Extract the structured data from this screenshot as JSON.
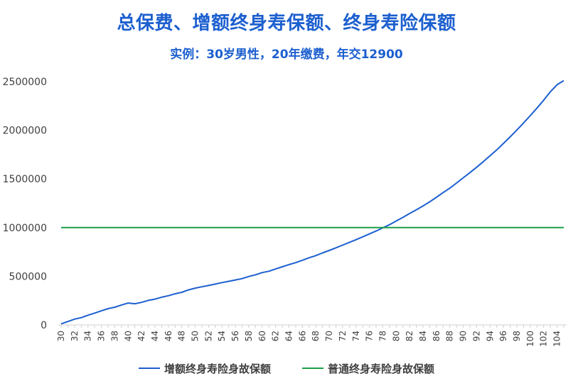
{
  "chart_data": {
    "type": "line",
    "title": "总保费、增额终身寿保额、终身寿险保额",
    "subtitle": "实例：30岁男性，20年缴费，年交12900",
    "xlabel": "",
    "ylabel": "",
    "ylim": [
      0,
      2500000
    ],
    "yticks": [
      0,
      500000,
      1000000,
      1500000,
      2000000,
      2500000
    ],
    "ytick_labels": [
      "0",
      "500000",
      "1000000",
      "1500000",
      "2000000",
      "2500000"
    ],
    "x": [
      30,
      31,
      32,
      33,
      34,
      35,
      36,
      37,
      38,
      39,
      40,
      41,
      42,
      43,
      44,
      45,
      46,
      47,
      48,
      49,
      50,
      51,
      52,
      53,
      54,
      55,
      56,
      57,
      58,
      59,
      60,
      61,
      62,
      63,
      64,
      65,
      66,
      67,
      68,
      69,
      70,
      71,
      72,
      73,
      74,
      75,
      76,
      77,
      78,
      79,
      80,
      81,
      82,
      83,
      84,
      85,
      86,
      87,
      88,
      89,
      90,
      91,
      92,
      93,
      94,
      95,
      96,
      97,
      98,
      99,
      100,
      101,
      102,
      103,
      104,
      105
    ],
    "xtick_labels": [
      "30",
      "32",
      "34",
      "36",
      "38",
      "40",
      "42",
      "44",
      "46",
      "48",
      "50",
      "52",
      "54",
      "56",
      "58",
      "60",
      "62",
      "64",
      "66",
      "68",
      "70",
      "72",
      "74",
      "76",
      "78",
      "80",
      "82",
      "84",
      "86",
      "88",
      "90",
      "92",
      "94",
      "96",
      "98",
      "100",
      "102",
      "104"
    ],
    "grid": false,
    "legend_position": "bottom",
    "series": [
      {
        "name": "增额终身寿险身故保额",
        "color": "#1c5fcf",
        "values": [
          12000,
          35000,
          60000,
          75000,
          100000,
          122000,
          145000,
          168000,
          182000,
          205000,
          225000,
          218000,
          232000,
          252000,
          265000,
          285000,
          300000,
          320000,
          335000,
          360000,
          378000,
          392000,
          405000,
          420000,
          435000,
          448000,
          462000,
          476000,
          498000,
          515000,
          538000,
          552000,
          575000,
          598000,
          620000,
          640000,
          665000,
          690000,
          712000,
          740000,
          765000,
          792000,
          820000,
          848000,
          876000,
          905000,
          935000,
          965000,
          998000,
          1030000,
          1068000,
          1105000,
          1145000,
          1182000,
          1222000,
          1265000,
          1312000,
          1360000,
          1405000,
          1458000,
          1512000,
          1565000,
          1620000,
          1678000,
          1738000,
          1798000,
          1865000,
          1932000,
          2002000,
          2075000,
          2150000,
          2228000,
          2308000,
          2395000,
          2468000,
          2510000
        ]
      },
      {
        "name": "普通终身寿险身故保额",
        "color": "#1a9e47",
        "values": [
          1000000,
          1000000,
          1000000,
          1000000,
          1000000,
          1000000,
          1000000,
          1000000,
          1000000,
          1000000,
          1000000,
          1000000,
          1000000,
          1000000,
          1000000,
          1000000,
          1000000,
          1000000,
          1000000,
          1000000,
          1000000,
          1000000,
          1000000,
          1000000,
          1000000,
          1000000,
          1000000,
          1000000,
          1000000,
          1000000,
          1000000,
          1000000,
          1000000,
          1000000,
          1000000,
          1000000,
          1000000,
          1000000,
          1000000,
          1000000,
          1000000,
          1000000,
          1000000,
          1000000,
          1000000,
          1000000,
          1000000,
          1000000,
          1000000,
          1000000,
          1000000,
          1000000,
          1000000,
          1000000,
          1000000,
          1000000,
          1000000,
          1000000,
          1000000,
          1000000,
          1000000,
          1000000,
          1000000,
          1000000,
          1000000,
          1000000,
          1000000,
          1000000,
          1000000,
          1000000,
          1000000,
          1000000,
          1000000,
          1000000,
          1000000,
          1000000
        ]
      }
    ]
  }
}
